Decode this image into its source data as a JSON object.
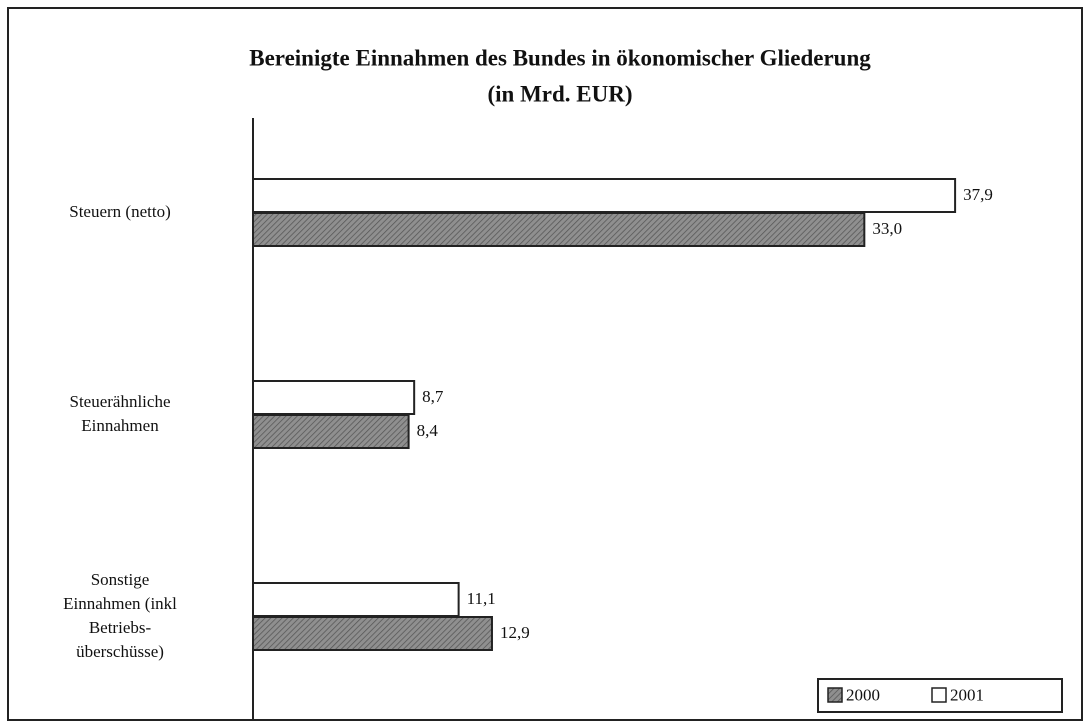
{
  "chart_data": {
    "type": "barh",
    "title": "Bereinigte Einnahmen des Bundes in ökonomischer Gliederung",
    "subtitle": "(in Mrd. EUR)",
    "categories": [
      [
        "Steuern (netto)"
      ],
      [
        "Steuerähnliche",
        "Einnahmen"
      ],
      [
        "Sonstige",
        "Einnahmen (inkl",
        "Betriebs-",
        "überschüsse)"
      ]
    ],
    "series": [
      {
        "name": "2000",
        "color": "#8f8f8f",
        "hatch": true,
        "values": [
          33.0,
          8.4,
          12.9
        ],
        "value_labels": [
          "33,0",
          "8,4",
          "12,9"
        ]
      },
      {
        "name": "2001",
        "color": "#ffffff",
        "hatch": false,
        "values": [
          37.9,
          8.7,
          11.1
        ],
        "value_labels": [
          "37,9",
          "8,7",
          "11,1"
        ]
      }
    ],
    "xlim": [
      0,
      40
    ],
    "legend": "lower right"
  }
}
